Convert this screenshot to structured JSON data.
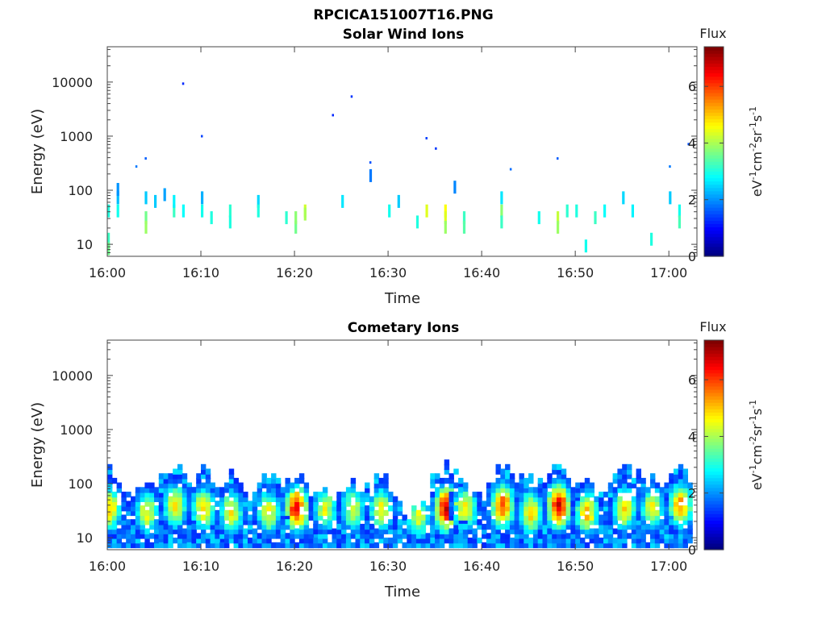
{
  "figure_title": "RPCICA151007T16.PNG",
  "chart_data": [
    {
      "type": "heatmap",
      "title": "Solar Wind Ions",
      "xlabel": "Time",
      "ylabel": "Energy (eV)",
      "yscale": "log",
      "x_ticks": [
        "16:00",
        "16:10",
        "16:20",
        "16:30",
        "16:40",
        "16:50",
        "17:00"
      ],
      "x_range": [
        "16:00",
        "17:03"
      ],
      "y_ticks": [
        10,
        100,
        1000,
        10000
      ],
      "y_range": [
        6,
        45000
      ],
      "colorbar": {
        "title": "Flux",
        "label": "eV-1cm-2sr-1s-1",
        "range": [
          0,
          7.4
        ],
        "ticks": [
          0,
          2,
          4,
          6
        ],
        "colormap": "jet"
      },
      "points": [
        [
          "16:00",
          12,
          3.2
        ],
        [
          "16:00",
          8,
          3.6
        ],
        [
          "16:00",
          40,
          3.0
        ],
        [
          "16:01",
          40,
          2.9
        ],
        [
          "16:01",
          70,
          2.3
        ],
        [
          "16:01",
          100,
          2.0
        ],
        [
          "16:03",
          270,
          1.8
        ],
        [
          "16:04",
          380,
          1.6
        ],
        [
          "16:04",
          70,
          2.4
        ],
        [
          "16:04",
          30,
          3.6
        ],
        [
          "16:04",
          20,
          3.9
        ],
        [
          "16:05",
          60,
          2.4
        ],
        [
          "16:06",
          80,
          2.1
        ],
        [
          "16:07",
          40,
          3.2
        ],
        [
          "16:07",
          60,
          2.7
        ],
        [
          "16:08",
          9200,
          1.2
        ],
        [
          "16:08",
          40,
          2.8
        ],
        [
          "16:10",
          70,
          2.2
        ],
        [
          "16:10",
          980,
          1.4
        ],
        [
          "16:10",
          40,
          2.9
        ],
        [
          "16:11",
          30,
          3.0
        ],
        [
          "16:13",
          40,
          3.1
        ],
        [
          "16:13",
          25,
          3.0
        ],
        [
          "16:16",
          60,
          2.5
        ],
        [
          "16:16",
          40,
          3.0
        ],
        [
          "16:19",
          30,
          3.1
        ],
        [
          "16:20",
          20,
          3.6
        ],
        [
          "16:20",
          30,
          3.8
        ],
        [
          "16:21",
          40,
          4.3
        ],
        [
          "16:21",
          35,
          4.0
        ],
        [
          "16:24",
          2400,
          1.2
        ],
        [
          "16:25",
          60,
          2.6
        ],
        [
          "16:26",
          5300,
          1.3
        ],
        [
          "16:28",
          320,
          1.5
        ],
        [
          "16:28",
          180,
          1.8
        ],
        [
          "16:30",
          40,
          2.9
        ],
        [
          "16:31",
          60,
          2.4
        ],
        [
          "16:33",
          25,
          3.0
        ],
        [
          "16:34",
          40,
          4.4
        ],
        [
          "16:34",
          900,
          1.4
        ],
        [
          "16:35",
          580,
          1.3
        ],
        [
          "16:36",
          40,
          4.6
        ],
        [
          "16:36",
          30,
          4.4
        ],
        [
          "16:36",
          20,
          3.9
        ],
        [
          "16:37",
          110,
          1.9
        ],
        [
          "16:38",
          30,
          3.2
        ],
        [
          "16:38",
          20,
          3.4
        ],
        [
          "16:42",
          70,
          2.6
        ],
        [
          "16:42",
          40,
          3.8
        ],
        [
          "16:42",
          25,
          3.2
        ],
        [
          "16:43",
          240,
          1.7
        ],
        [
          "16:46",
          30,
          2.9
        ],
        [
          "16:48",
          380,
          1.6
        ],
        [
          "16:48",
          30,
          4.2
        ],
        [
          "16:48",
          20,
          3.9
        ],
        [
          "16:49",
          40,
          3.1
        ],
        [
          "16:50",
          40,
          3.0
        ],
        [
          "16:51",
          9,
          2.9
        ],
        [
          "16:52",
          30,
          3.2
        ],
        [
          "16:53",
          40,
          2.8
        ],
        [
          "16:55",
          70,
          2.5
        ],
        [
          "16:56",
          40,
          2.7
        ],
        [
          "16:58",
          12,
          3.0
        ],
        [
          "17:00",
          270,
          1.8
        ],
        [
          "17:00",
          70,
          2.4
        ],
        [
          "17:01",
          40,
          2.9
        ],
        [
          "17:01",
          25,
          3.3
        ],
        [
          "17:02",
          700,
          1.5
        ]
      ]
    },
    {
      "type": "heatmap",
      "title": "Cometary Ions",
      "xlabel": "Time",
      "ylabel": "Energy (eV)",
      "yscale": "log",
      "x_ticks": [
        "16:00",
        "16:10",
        "16:20",
        "16:30",
        "16:40",
        "16:50",
        "17:00"
      ],
      "x_range": [
        "16:00",
        "17:03"
      ],
      "y_ticks": [
        10,
        100,
        1000,
        10000
      ],
      "y_range": [
        6,
        45000
      ],
      "colorbar": {
        "title": "Flux",
        "label": "eV-1cm-2sr-1s-1",
        "range": [
          0,
          7.4
        ],
        "ticks": [
          0,
          2,
          4,
          6
        ],
        "colormap": "jet"
      },
      "bursts": [
        {
          "time": "16:00",
          "peak_energy": 35,
          "peak_flux": 4.6,
          "top_energy": 250
        },
        {
          "time": "16:04",
          "peak_energy": 30,
          "peak_flux": 4.2,
          "top_energy": 150
        },
        {
          "time": "16:07",
          "peak_energy": 40,
          "peak_flux": 4.4,
          "top_energy": 320
        },
        {
          "time": "16:10",
          "peak_energy": 35,
          "peak_flux": 4.5,
          "top_energy": 250
        },
        {
          "time": "16:13",
          "peak_energy": 30,
          "peak_flux": 4.3,
          "top_energy": 200
        },
        {
          "time": "16:17",
          "peak_energy": 30,
          "peak_flux": 4.2,
          "top_energy": 220
        },
        {
          "time": "16:20",
          "peak_energy": 35,
          "peak_flux": 6.3,
          "top_energy": 200
        },
        {
          "time": "16:23",
          "peak_energy": 35,
          "peak_flux": 4.1,
          "top_energy": 120
        },
        {
          "time": "16:26",
          "peak_energy": 35,
          "peak_flux": 4.0,
          "top_energy": 180
        },
        {
          "time": "16:29",
          "peak_energy": 35,
          "peak_flux": 4.3,
          "top_energy": 200
        },
        {
          "time": "16:33",
          "peak_energy": 25,
          "peak_flux": 4.0,
          "top_energy": 60
        },
        {
          "time": "16:36",
          "peak_energy": 35,
          "peak_flux": 6.5,
          "top_energy": 320
        },
        {
          "time": "16:38",
          "peak_energy": 35,
          "peak_flux": 4.5,
          "top_energy": 150
        },
        {
          "time": "16:42",
          "peak_energy": 40,
          "peak_flux": 5.6,
          "top_energy": 280
        },
        {
          "time": "16:45",
          "peak_energy": 30,
          "peak_flux": 4.6,
          "top_energy": 220
        },
        {
          "time": "16:48",
          "peak_energy": 40,
          "peak_flux": 6.4,
          "top_energy": 300
        },
        {
          "time": "16:51",
          "peak_energy": 30,
          "peak_flux": 4.8,
          "top_energy": 200
        },
        {
          "time": "16:55",
          "peak_energy": 35,
          "peak_flux": 4.5,
          "top_energy": 350
        },
        {
          "time": "16:58",
          "peak_energy": 35,
          "peak_flux": 4.3,
          "top_energy": 200
        },
        {
          "time": "17:01",
          "peak_energy": 40,
          "peak_flux": 5.2,
          "top_energy": 280
        }
      ]
    }
  ]
}
